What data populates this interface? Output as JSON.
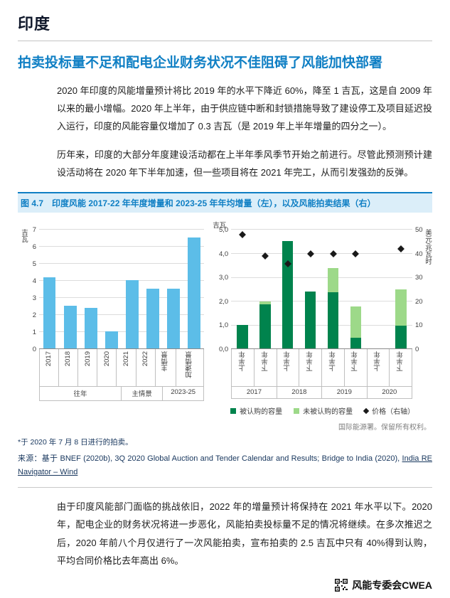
{
  "page": {
    "title": "印度",
    "heading": "拍卖投标量不足和配电企业财务状况不佳阻碍了风能加快部署",
    "para1": "2020 年印度的风能增量预计将比 2019 年的水平下降近 60%，降至 1 吉瓦，这是自 2009 年以来的最小增幅。2020 年上半年，由于供应链中断和封锁措施导致了建设停工及项目延迟投入运行，印度的风能容量仅增加了 0.3 吉瓦（是 2019 年上半年增量的四分之一）。",
    "para2": "历年来，印度的大部分年度建设活动都在上半年季风季节开始之前进行。尽管此预测预计建设活动将在 2020 年下半年加速，但一些项目将在 2021 年完工，从而引发强劲的反弹。",
    "para3": "由于印度风能部门面临的挑战依旧，2022 年的增量预计将保持在 2021 年水平以下。2020 年，配电企业的财务状况将进一步恶化，风能拍卖投标量不足的情况将继续。在多次推迟之后，2020 年前八个月仅进行了一次风能拍卖，宣布拍卖的 2.5 吉瓦中只有 40%得到认购，平均合同价格比去年高出 6%。",
    "footer_brand": "风能专委会CWEA"
  },
  "figure": {
    "label": "图 4.7",
    "caption": "印度风能 2017-22 年年度增量和 2023-25 年年均增量（左），以及风能拍卖结果（右）",
    "credit": "国际能源署。保留所有权利。",
    "footnote": "*于 2020 年 7 月 8 日进行的拍卖。",
    "source_prefix": "来源：基于 BNEF (2020b), 3Q 2020 Global Auction and Tender Calendar and Results; Bridge to India (2020), ",
    "source_link": "India RE Navigator – Wind"
  },
  "colors": {
    "accent_blue": "#0f7fc4",
    "caption_bg": "#dbeef9",
    "bar_blue": "#5cbde8",
    "dark_green": "#00834d",
    "light_green": "#9dd989",
    "marker_black": "#1a1a1a"
  },
  "chart_data": [
    {
      "type": "bar",
      "title": "印度风能 2017-22 年年度增量和 2023-25 年年均增量",
      "ylabel": "吉瓦",
      "ylim": [
        0,
        7
      ],
      "yticks": [
        "0",
        "1",
        "2",
        "3",
        "4",
        "5",
        "6",
        "7"
      ],
      "grid": true,
      "categories": [
        "2017",
        "2018",
        "2019",
        "2020",
        "2021",
        "2022",
        "主情景",
        "加速情景"
      ],
      "groups": [
        {
          "label": "往年",
          "span": 4
        },
        {
          "label": "主情景",
          "span": 2
        },
        {
          "label": "2023-25",
          "span": 2
        }
      ],
      "values": [
        4.2,
        2.5,
        2.4,
        1.0,
        4.0,
        3.5,
        3.5,
        6.5
      ],
      "bar_color": "#5cbde8"
    },
    {
      "type": "bar",
      "subtype": "stacked-with-points",
      "title": "风能拍卖结果",
      "ylabel_left": "吉瓦",
      "ylabel_right": "美元/兆瓦时",
      "ylim_left": [
        0,
        5
      ],
      "yticks_left": [
        "0,0",
        "1,0",
        "2,0",
        "3,0",
        "4,0",
        "5,0"
      ],
      "ylim_right": [
        0,
        50
      ],
      "yticks_right": [
        "0",
        "10",
        "20",
        "30",
        "40",
        "50"
      ],
      "grid": true,
      "categories": [
        "上半年",
        "下半年",
        "上半年",
        "下半年",
        "上半年",
        "下半年",
        "上半年",
        "下半年"
      ],
      "groups": [
        {
          "label": "2017",
          "span": 2
        },
        {
          "label": "2018",
          "span": 2
        },
        {
          "label": "2019",
          "span": 2
        },
        {
          "label": "2020",
          "span": 2
        }
      ],
      "series": [
        {
          "name": "被认购的容量",
          "color": "#00834d",
          "values": [
            1.0,
            1.9,
            4.5,
            2.4,
            2.4,
            0.5,
            0,
            1.0
          ]
        },
        {
          "name": "未被认购的容量",
          "color": "#9dd989",
          "values": [
            0,
            0.1,
            0,
            0,
            1.0,
            1.3,
            0,
            1.5
          ]
        }
      ],
      "points": {
        "name": "价格（右轴）",
        "color": "#1a1a1a",
        "axis": "right",
        "values": [
          48,
          39,
          36,
          40,
          40,
          40,
          null,
          42
        ]
      },
      "legend": [
        "被认购的容量",
        "未被认购的容量",
        "价格（右轴）"
      ],
      "legend_position": "bottom"
    }
  ]
}
